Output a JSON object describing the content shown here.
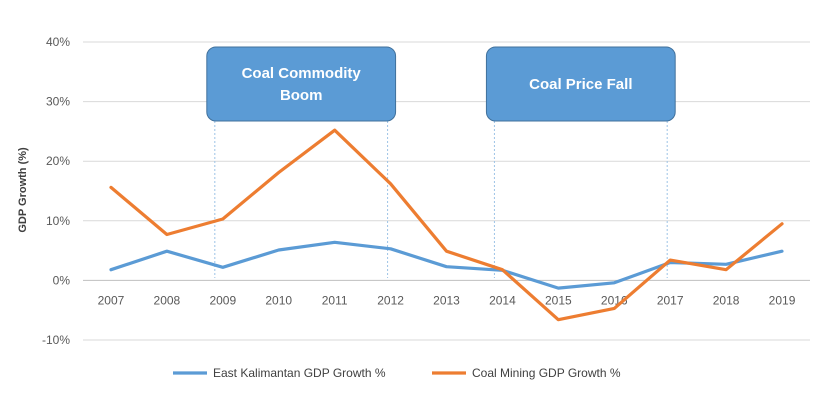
{
  "chart_data": {
    "type": "line",
    "title": "",
    "xlabel": "",
    "ylabel": "GDP Growth (%)",
    "ylim": [
      -10,
      40
    ],
    "yticks": [
      "-10%",
      "0%",
      "10%",
      "20%",
      "30%",
      "40%"
    ],
    "ytick_values": [
      -10,
      0,
      10,
      20,
      30,
      40
    ],
    "categories": [
      "2007",
      "2008",
      "2009",
      "2010",
      "2011",
      "2012",
      "2013",
      "2014",
      "2015",
      "2016",
      "2017",
      "2018",
      "2019"
    ],
    "grid": true,
    "legend_position": "bottom",
    "series": [
      {
        "name": "East Kalimantan GDP Growth %",
        "color": "#5b9bd5",
        "values": [
          1.8,
          4.9,
          2.2,
          5.1,
          6.4,
          5.3,
          2.3,
          1.7,
          -1.3,
          -0.4,
          3.0,
          2.7,
          4.9
        ]
      },
      {
        "name": "Coal Mining GDP Growth %",
        "color": "#ed7d31",
        "values": [
          15.6,
          7.7,
          10.3,
          18.1,
          25.2,
          16.2,
          4.9,
          1.8,
          -6.6,
          -4.7,
          3.4,
          1.8,
          9.5
        ]
      }
    ],
    "annotations": [
      {
        "text_lines": [
          "Coal Commodity",
          "Boom"
        ],
        "from_category": "2009",
        "to_category": "2012"
      },
      {
        "text_lines": [
          "Coal Price Fall"
        ],
        "from_category": "2014",
        "to_category": "2017"
      }
    ],
    "annotation_color": "#5b9bd5"
  }
}
